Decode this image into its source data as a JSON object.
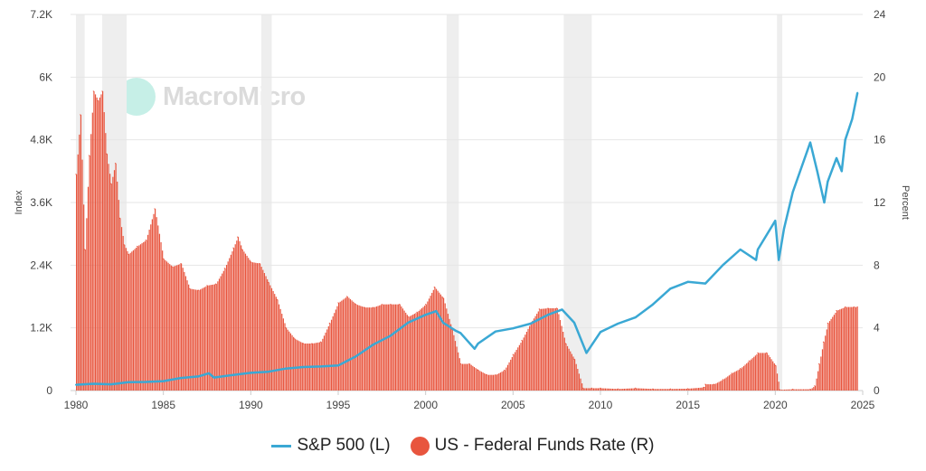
{
  "watermark": "MacroMicro",
  "chart_data": {
    "type": "line+bar",
    "title": "",
    "xlabel": "",
    "ylabel_left": "Index",
    "ylabel_right": "Percent",
    "xlim": [
      1980,
      2025
    ],
    "ylim_left": [
      0,
      7200
    ],
    "ylim_right": [
      0,
      24
    ],
    "x_ticks": [
      "1980",
      "1985",
      "1990",
      "1995",
      "2000",
      "2005",
      "2010",
      "2015",
      "2020",
      "2025"
    ],
    "y_left_ticks": [
      "0",
      "1.2K",
      "2.4K",
      "3.6K",
      "4.8K",
      "6K",
      "7.2K"
    ],
    "y_right_ticks": [
      "0",
      "4",
      "8",
      "12",
      "16",
      "20",
      "24"
    ],
    "grid": true,
    "legend_position": "bottom",
    "recessions": [
      [
        1980.0,
        1980.5
      ],
      [
        1981.5,
        1982.9
      ],
      [
        1990.6,
        1991.2
      ],
      [
        2001.2,
        2001.9
      ],
      [
        2007.9,
        2009.5
      ],
      [
        2020.1,
        2020.4
      ]
    ],
    "colors": {
      "sp500": "#3aa8d4",
      "fed": "#e8553e",
      "recession": "#eeeeee"
    },
    "series": [
      {
        "name": "S&P 500 (L)",
        "axis": "left",
        "type": "line",
        "x": [
          1980,
          1981,
          1982,
          1983,
          1984,
          1985,
          1986,
          1987,
          1987.6,
          1987.9,
          1989,
          1990,
          1991,
          1992,
          1993,
          1994,
          1995,
          1996,
          1997,
          1998,
          1999,
          2000,
          2000.6,
          2001,
          2001.7,
          2002,
          2002.8,
          2003,
          2004,
          2005,
          2006,
          2007,
          2007.8,
          2008.5,
          2009.2,
          2010,
          2011,
          2012,
          2013,
          2014,
          2015,
          2016,
          2017,
          2018,
          2018.9,
          2019,
          2020,
          2020.2,
          2020.5,
          2021,
          2022,
          2022.4,
          2022.8,
          2023,
          2023.5,
          2023.8,
          2024,
          2024.4,
          2024.7
        ],
        "values": [
          110,
          130,
          120,
          160,
          165,
          180,
          240,
          270,
          330,
          250,
          300,
          340,
          360,
          420,
          450,
          460,
          480,
          650,
          880,
          1050,
          1300,
          1450,
          1520,
          1300,
          1150,
          1100,
          800,
          900,
          1130,
          1190,
          1280,
          1450,
          1550,
          1300,
          720,
          1120,
          1280,
          1400,
          1650,
          1950,
          2080,
          2050,
          2400,
          2700,
          2500,
          2700,
          3250,
          2500,
          3100,
          3800,
          4750,
          4200,
          3600,
          4000,
          4450,
          4200,
          4800,
          5200,
          5700
        ]
      },
      {
        "name": "US - Federal Funds Rate (R)",
        "axis": "right",
        "type": "bar",
        "x": [
          1980,
          1980.25,
          1980.5,
          1980.75,
          1981,
          1981.25,
          1981.5,
          1981.75,
          1982,
          1982.25,
          1982.5,
          1982.75,
          1983,
          1983.5,
          1984,
          1984.5,
          1985,
          1985.5,
          1986,
          1986.5,
          1987,
          1987.5,
          1988,
          1988.5,
          1989,
          1989.25,
          1989.5,
          1990,
          1990.5,
          1991,
          1991.5,
          1992,
          1992.5,
          1993,
          1993.5,
          1994,
          1994.5,
          1995,
          1995.5,
          1996,
          1996.5,
          1997,
          1997.5,
          1998,
          1998.5,
          1999,
          1999.5,
          2000,
          2000.5,
          2001,
          2001.5,
          2002,
          2002.5,
          2003,
          2003.5,
          2004,
          2004.5,
          2005,
          2005.5,
          2006,
          2006.5,
          2007,
          2007.5,
          2008,
          2008.5,
          2009,
          2009.5,
          2010,
          2011,
          2012,
          2013,
          2014,
          2015,
          2015.9,
          2016,
          2016.5,
          2017,
          2017.5,
          2018,
          2018.5,
          2019,
          2019.5,
          2020,
          2020.25,
          2021,
          2022,
          2022.25,
          2022.5,
          2022.75,
          2023,
          2023.5,
          2024,
          2024.5,
          2024.7
        ],
        "values": [
          13.8,
          17.6,
          9.0,
          15.0,
          19.1,
          18.5,
          19.1,
          15.1,
          13.2,
          14.5,
          11.0,
          9.3,
          8.7,
          9.2,
          9.6,
          11.6,
          8.4,
          7.9,
          8.1,
          6.5,
          6.4,
          6.7,
          6.8,
          7.8,
          9.1,
          9.8,
          9.0,
          8.2,
          8.1,
          6.9,
          5.8,
          4.0,
          3.3,
          3.0,
          3.0,
          3.1,
          4.3,
          5.6,
          6.0,
          5.5,
          5.3,
          5.3,
          5.5,
          5.5,
          5.5,
          4.7,
          5.0,
          5.5,
          6.6,
          5.9,
          3.9,
          1.7,
          1.7,
          1.3,
          1.0,
          1.0,
          1.3,
          2.3,
          3.2,
          4.3,
          5.2,
          5.25,
          5.25,
          3.0,
          2.0,
          0.15,
          0.15,
          0.15,
          0.1,
          0.15,
          0.1,
          0.1,
          0.12,
          0.2,
          0.4,
          0.4,
          0.7,
          1.1,
          1.4,
          1.9,
          2.4,
          2.4,
          1.6,
          0.05,
          0.08,
          0.08,
          0.3,
          1.7,
          3.1,
          4.3,
          5.1,
          5.33,
          5.33,
          5.33
        ]
      }
    ]
  }
}
